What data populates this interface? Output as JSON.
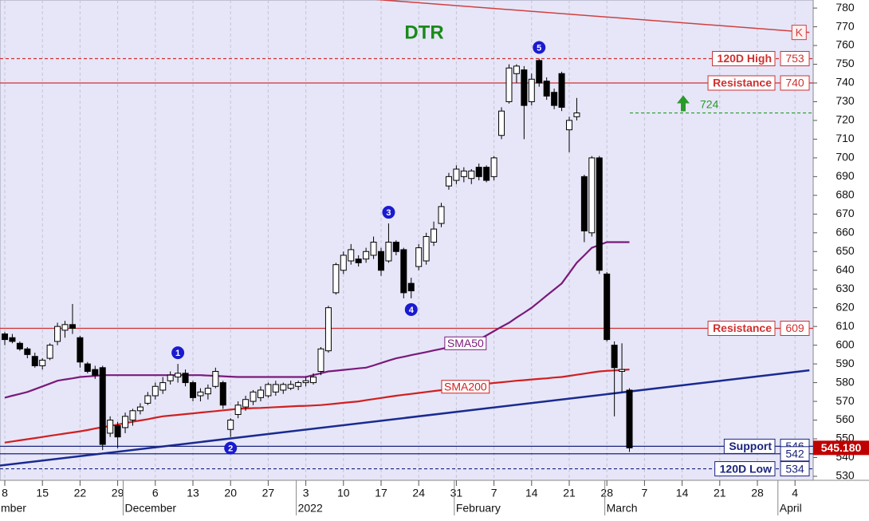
{
  "chart_data": {
    "type": "candlestick",
    "title": "DTR",
    "title_color": "#1a8a1a",
    "up_color": "#ffffff",
    "down_color": "#000000",
    "grid": true,
    "ylim": [
      528.7,
      784.3
    ],
    "yticks": [
      530,
      540,
      550,
      560,
      570,
      580,
      590,
      600,
      610,
      620,
      630,
      640,
      650,
      660,
      670,
      680,
      690,
      700,
      710,
      720,
      730,
      740,
      750,
      760,
      770,
      780
    ],
    "categories": [
      "8",
      null,
      null,
      null,
      null,
      "15",
      null,
      null,
      null,
      null,
      "22",
      null,
      null,
      null,
      null,
      "29",
      null,
      null,
      null,
      null,
      "6",
      null,
      null,
      null,
      null,
      "13",
      null,
      null,
      null,
      null,
      "20",
      null,
      null,
      null,
      null,
      "27",
      null,
      null,
      null,
      null,
      "3",
      null,
      null,
      null,
      null,
      "10",
      null,
      null,
      null,
      null,
      "17",
      null,
      null,
      null,
      null,
      "24",
      null,
      null,
      null,
      null,
      "31",
      null,
      null,
      null,
      null,
      "7",
      null,
      null,
      null,
      null,
      "14",
      null,
      null,
      null,
      null,
      "21",
      null,
      null,
      null,
      null,
      "28",
      null,
      null,
      null,
      null,
      "7",
      null,
      null,
      null,
      null,
      "14",
      null,
      null,
      null,
      null,
      "21",
      null,
      null,
      null,
      null,
      "28",
      null,
      null,
      null,
      null,
      "4"
    ],
    "month_labels": [
      "mber",
      null,
      null,
      null,
      null,
      null,
      null,
      null,
      null,
      null,
      null,
      null,
      null,
      null,
      null,
      null,
      null,
      "December",
      null,
      null,
      null,
      null,
      null,
      null,
      null,
      null,
      null,
      null,
      null,
      null,
      null,
      null,
      null,
      null,
      null,
      null,
      null,
      null,
      null,
      null,
      "2022",
      null,
      null,
      null,
      null,
      null,
      null,
      null,
      null,
      null,
      null,
      null,
      null,
      null,
      null,
      null,
      null,
      null,
      null,
      null,
      null,
      "February",
      null,
      null,
      null,
      null,
      null,
      null,
      null,
      null,
      null,
      null,
      null,
      null,
      null,
      null,
      null,
      null,
      null,
      null,
      null,
      "March",
      null,
      null,
      null,
      null,
      null,
      null,
      null,
      null,
      null,
      null,
      null,
      null,
      null,
      null,
      null,
      null,
      null,
      null,
      null,
      null,
      null,
      null,
      "April",
      null
    ],
    "wave_labels": [
      null,
      null,
      null,
      null,
      null,
      null,
      null,
      null,
      null,
      null,
      null,
      null,
      null,
      null,
      null,
      null,
      null,
      null,
      null,
      null,
      null,
      null,
      null,
      "1",
      null,
      null,
      null,
      null,
      null,
      null,
      "2",
      null,
      null,
      null,
      null,
      null,
      null,
      null,
      null,
      null,
      null,
      null,
      null,
      null,
      null,
      null,
      null,
      null,
      null,
      null,
      null,
      "3",
      null,
      null,
      "4",
      null,
      null,
      null,
      null,
      null,
      null,
      null,
      null,
      null,
      null,
      null,
      null,
      null,
      null,
      null,
      null,
      "5",
      null,
      null,
      null,
      null,
      null,
      null,
      null,
      null,
      null,
      null,
      null,
      null,
      null,
      null,
      null,
      null,
      null,
      null,
      null,
      null,
      null,
      null,
      null,
      null,
      null,
      null,
      null,
      null,
      null,
      null,
      null,
      null,
      null,
      null
    ],
    "open": [
      606,
      604,
      601,
      598,
      594,
      589,
      593,
      602,
      608,
      611,
      604,
      590,
      587,
      588,
      553,
      557,
      556,
      560,
      565,
      569,
      573,
      576,
      581,
      583,
      585,
      580,
      573,
      574,
      578,
      580,
      555,
      563,
      567,
      570,
      572,
      573,
      575,
      576,
      577,
      578,
      580,
      580,
      586,
      597,
      628,
      640,
      645,
      646,
      646,
      648,
      650,
      645,
      655,
      651,
      633,
      642,
      645,
      655,
      665,
      685,
      688,
      690,
      689,
      695,
      695,
      690,
      712,
      730,
      745,
      747,
      730,
      752,
      741,
      735,
      745,
      715,
      722,
      690,
      660,
      700,
      638,
      600,
      586,
      576,
      null,
      null,
      null,
      null,
      null,
      null,
      null,
      null,
      null,
      null,
      null,
      null,
      null,
      null,
      null,
      null,
      null,
      null,
      null,
      null,
      null,
      null
    ],
    "high": [
      607,
      606,
      602,
      599,
      596,
      593,
      601,
      612,
      613,
      622,
      605,
      591,
      589,
      589,
      562,
      559,
      564,
      566,
      569,
      575,
      580,
      583,
      586,
      590,
      587,
      581,
      577,
      579,
      588,
      581,
      561,
      570,
      573,
      576,
      578,
      580,
      581,
      580,
      581,
      581,
      583,
      585,
      599,
      621,
      644,
      650,
      654,
      648,
      652,
      658,
      652,
      665,
      656,
      652,
      636,
      654,
      660,
      666,
      676,
      692,
      696,
      695,
      694,
      697,
      696,
      701,
      727,
      750,
      750,
      749,
      745,
      753,
      743,
      737,
      746,
      722,
      732,
      691,
      701,
      701,
      639,
      602,
      601,
      577,
      null,
      null,
      null,
      null,
      null,
      null,
      null,
      null,
      null,
      null,
      null,
      null,
      null,
      null,
      null,
      null,
      null,
      null,
      null,
      null,
      null,
      null
    ],
    "low": [
      600,
      601,
      597,
      593,
      588,
      587,
      592,
      600,
      604,
      606,
      588,
      585,
      582,
      544,
      551,
      545,
      553,
      557,
      563,
      568,
      571,
      574,
      579,
      580,
      578,
      570,
      570,
      571,
      577,
      566,
      551,
      561,
      565,
      568,
      570,
      572,
      573,
      574,
      576,
      576,
      578,
      579,
      584,
      596,
      627,
      638,
      643,
      642,
      644,
      646,
      637,
      644,
      648,
      625,
      625,
      640,
      643,
      653,
      663,
      683,
      686,
      687,
      686,
      688,
      687,
      688,
      710,
      729,
      740,
      710,
      728,
      738,
      731,
      726,
      725,
      703,
      720,
      655,
      658,
      638,
      602,
      562,
      575,
      543,
      null,
      null,
      null,
      null,
      null,
      null,
      null,
      null,
      null,
      null,
      null,
      null,
      null,
      null,
      null,
      null,
      null,
      null,
      null,
      null,
      null,
      null
    ],
    "close": [
      603,
      602,
      598,
      595,
      589,
      592,
      600,
      610,
      611,
      609,
      591,
      586,
      584,
      547,
      560,
      551,
      562,
      565,
      567,
      573,
      578,
      580,
      584,
      585,
      580,
      572,
      575,
      577,
      586,
      568,
      560,
      568,
      571,
      575,
      576,
      579,
      579,
      579,
      579,
      580,
      581,
      583,
      598,
      620,
      643,
      648,
      651,
      644,
      650,
      655,
      640,
      655,
      650,
      628,
      629,
      652,
      658,
      662,
      674,
      690,
      694,
      693,
      693,
      690,
      688,
      700,
      725,
      748,
      749,
      728,
      742,
      740,
      733,
      728,
      727,
      720,
      724,
      661,
      700,
      640,
      603,
      588,
      587,
      545.18,
      null,
      null,
      null,
      null,
      null,
      null,
      null,
      null,
      null,
      null,
      null,
      null,
      null,
      null,
      null,
      null,
      null,
      null,
      null,
      null,
      null,
      null
    ],
    "series": [
      {
        "name": "SMA50",
        "color": "#7a1a7a",
        "values": [
          572,
          573,
          574,
          575,
          576.5,
          578,
          579.5,
          581,
          581.7,
          582.3,
          583,
          583.3,
          583.6,
          584,
          584,
          584,
          584,
          584,
          584,
          584,
          584,
          584,
          584,
          584,
          584,
          584,
          584,
          583.8,
          583.6,
          583.4,
          583.2,
          583,
          583,
          583,
          583,
          583,
          583,
          583,
          583,
          583,
          583,
          584,
          585,
          586,
          586.4,
          586.8,
          587.2,
          587.6,
          588,
          589.2,
          590.5,
          591.8,
          593,
          593.8,
          594.7,
          595.5,
          596.3,
          597.2,
          598,
          599,
          600,
          601,
          602,
          603,
          605.2,
          607.5,
          609.8,
          612,
          614.7,
          617.3,
          620,
          623.2,
          626.5,
          629.7,
          633,
          638.5,
          644,
          648,
          652,
          653.5,
          655,
          655,
          655,
          655,
          null,
          null,
          null,
          null,
          null,
          null,
          null,
          null,
          null,
          null,
          null,
          null,
          null,
          null,
          null,
          null,
          null,
          null,
          null,
          null,
          null,
          null
        ]
      },
      {
        "name": "SMA200",
        "color": "#d02020",
        "values": [
          548,
          548.6,
          549.2,
          549.8,
          550.4,
          551,
          551.6,
          552.2,
          552.8,
          553.4,
          554,
          554.7,
          555.5,
          556.2,
          556.9,
          557.6,
          558.4,
          559.1,
          559.8,
          560.5,
          561.3,
          562,
          562.4,
          562.8,
          563.2,
          563.6,
          564,
          564.4,
          564.8,
          565.2,
          565.6,
          566,
          566.2,
          566.4,
          566.5,
          566.7,
          566.9,
          567.1,
          567.3,
          567.5,
          567.6,
          567.8,
          568,
          568.4,
          568.8,
          569.2,
          569.6,
          570,
          570.6,
          571.2,
          571.8,
          572.4,
          573,
          573.5,
          574,
          574.5,
          575,
          575.5,
          576,
          576.6,
          577.2,
          577.8,
          578.4,
          579,
          579.4,
          579.8,
          580.2,
          580.6,
          581,
          581.3,
          581.7,
          582,
          582.3,
          582.7,
          583,
          583.6,
          584.2,
          584.8,
          585.4,
          586,
          586.3,
          586.5,
          586.8,
          587,
          null,
          null,
          null,
          null,
          null,
          null,
          null,
          null,
          null,
          null,
          null,
          null,
          null,
          null,
          null,
          null,
          null,
          null,
          null,
          null,
          null,
          null
        ]
      }
    ],
    "trendlines": [
      {
        "label": "K",
        "color": "#d04040",
        "values": [
          null,
          null,
          null,
          null,
          null,
          null,
          null,
          null,
          null,
          null,
          null,
          null,
          null,
          null,
          null,
          null,
          null,
          null,
          null,
          null,
          null,
          null,
          null,
          null,
          null,
          null,
          null,
          null,
          null,
          null,
          null,
          null,
          null,
          null,
          null,
          null,
          null,
          null,
          null,
          null,
          null,
          null,
          null,
          null,
          null,
          null,
          null,
          null,
          null,
          null,
          null,
          null,
          null,
          null,
          null,
          null,
          null,
          null,
          null,
          null,
          null,
          null,
          null,
          null,
          null,
          null,
          null,
          null,
          null,
          null,
          null,
          null,
          null,
          null,
          null,
          null,
          null,
          null,
          null,
          null,
          775.2,
          null,
          null,
          null,
          null,
          null,
          null,
          null,
          null,
          null,
          null,
          null,
          null,
          null,
          null,
          null,
          null,
          null,
          null,
          null,
          769.1,
          null,
          null,
          null,
          null,
          null
        ]
      },
      {
        "color": "#1a2a90",
        "values": [
          536,
          null,
          null,
          null,
          null,
          null,
          null,
          null,
          null,
          null,
          null,
          null,
          null,
          null,
          null,
          null,
          null,
          null,
          null,
          null,
          null,
          null,
          null,
          null,
          null,
          null,
          null,
          null,
          null,
          null,
          null,
          null,
          null,
          null,
          null,
          null,
          null,
          null,
          null,
          null,
          null,
          null,
          null,
          null,
          null,
          null,
          null,
          null,
          null,
          null,
          null,
          null,
          null,
          null,
          null,
          null,
          null,
          null,
          null,
          null,
          null,
          null,
          null,
          null,
          null,
          null,
          null,
          null,
          null,
          null,
          null,
          null,
          null,
          null,
          null,
          null,
          null,
          null,
          null,
          null,
          null,
          null,
          null,
          null,
          null,
          null,
          null,
          null,
          null,
          null,
          null,
          null,
          null,
          null,
          null,
          null,
          null,
          null,
          null,
          null,
          583.3,
          null,
          null,
          null,
          null,
          null
        ]
      }
    ],
    "levels": [
      {
        "label": "120D High",
        "value": 753,
        "color": "#d03030",
        "style": "dashed"
      },
      {
        "label": "Resistance",
        "value": 740,
        "color": "#d03030",
        "style": "solid"
      },
      {
        "label": "Resistance",
        "value": 609,
        "color": "#d03030",
        "style": "solid"
      },
      {
        "label": "Support",
        "value": 546,
        "color": "#1a237e",
        "style": "solid"
      },
      {
        "value": 542,
        "color": "#1a237e",
        "style": "solid"
      },
      {
        "label": "120D Low",
        "value": 534,
        "color": "#1a237e",
        "style": "dashed"
      }
    ],
    "target": {
      "value": 724,
      "color": "#2a9a2a"
    },
    "last_price": {
      "value": 545.18,
      "label": "545.180",
      "color": "#c00000"
    }
  }
}
